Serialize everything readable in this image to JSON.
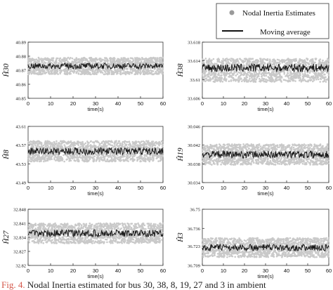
{
  "legend": {
    "scatter_label": "Nodal Inertia Estimates",
    "line_label": "Moving average",
    "colors": {
      "scatter": "#c9c9c9",
      "line": "#1a1a1a"
    }
  },
  "caption": {
    "label": "Fig. 4.",
    "text": "Nodal Inertia estimated for bus 30, 38, 8, 19, 27 and 3 in ambient"
  },
  "chart_data": [
    {
      "type": "scatter",
      "ylabel": "Ĥ30",
      "xlabel": "time(s)",
      "xlim": [
        0,
        60
      ],
      "xticks": [
        "0",
        "10",
        "20",
        "30",
        "40",
        "50",
        "60"
      ],
      "ylim": [
        40.85,
        40.89
      ],
      "yticks": [
        "40.85",
        "40.86",
        "40.87",
        "40.88",
        "40.89"
      ],
      "series": [
        {
          "estimate_center": 40.873,
          "estimate_spread": 0.006
        },
        {
          "moving_average": 40.873
        }
      ]
    },
    {
      "type": "scatter",
      "ylabel": "Ĥ38",
      "xlabel": "time(s)",
      "xlim": [
        0,
        60
      ],
      "xticks": [
        "0",
        "10",
        "20",
        "30",
        "40",
        "50",
        "60"
      ],
      "ylim": [
        33.606,
        33.618
      ],
      "yticks": [
        "33.606",
        "33.61",
        "33.614",
        "33.618"
      ],
      "series": [
        {
          "estimate_center": 33.612,
          "estimate_spread": 0.0025
        },
        {
          "moving_average": 33.6125
        }
      ]
    },
    {
      "type": "scatter",
      "ylabel": "Ĥ8",
      "xlabel": "time(s)",
      "xlim": [
        0,
        60
      ],
      "xticks": [
        "0",
        "10",
        "20",
        "30",
        "40",
        "50",
        "60"
      ],
      "ylim": [
        43.49,
        43.61
      ],
      "yticks": [
        "43.49",
        "43.53",
        "43.57",
        "43.61"
      ],
      "series": [
        {
          "estimate_center": 43.557,
          "estimate_spread": 0.022
        },
        {
          "moving_average": 43.557
        }
      ]
    },
    {
      "type": "scatter",
      "ylabel": "Ĥ19",
      "xlabel": "time(s)",
      "xlim": [
        0,
        60
      ],
      "xticks": [
        "0",
        "10",
        "20",
        "30",
        "40",
        "50",
        "60"
      ],
      "ylim": [
        30.034,
        30.046
      ],
      "yticks": [
        "30.034",
        "30.038",
        "30.042",
        "30.046"
      ],
      "series": [
        {
          "estimate_center": 30.04,
          "estimate_spread": 0.0022
        },
        {
          "moving_average": 30.04
        }
      ]
    },
    {
      "type": "scatter",
      "ylabel": "Ĥ27",
      "xlabel": "time(s)",
      "xlim": [
        0,
        60
      ],
      "xticks": [
        "0",
        "10",
        "20",
        "30",
        "40",
        "50",
        "60"
      ],
      "ylim": [
        32.82,
        32.848
      ],
      "yticks": [
        "32.82",
        "32.827",
        "32.834",
        "32.841",
        "32.848"
      ],
      "series": [
        {
          "estimate_center": 32.836,
          "estimate_spread": 0.005
        },
        {
          "moving_average": 32.836
        }
      ]
    },
    {
      "type": "scatter",
      "ylabel": "Ĥ3",
      "xlabel": "time(s)",
      "xlim": [
        0,
        60
      ],
      "xticks": [
        "0",
        "10",
        "20",
        "30",
        "40",
        "50",
        "60"
      ],
      "ylim": [
        36.709,
        36.75
      ],
      "yticks": [
        "36.709",
        "36.723",
        "36.736",
        "36.75"
      ],
      "series": [
        {
          "estimate_center": 36.722,
          "estimate_spread": 0.007
        },
        {
          "moving_average": 36.722
        }
      ]
    }
  ]
}
